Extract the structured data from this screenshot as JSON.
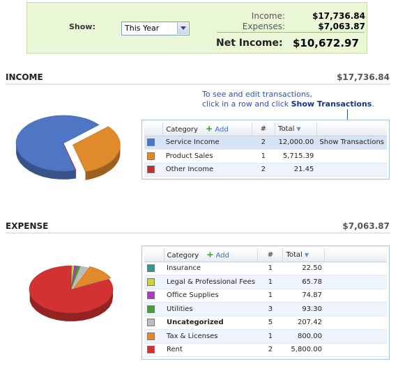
{
  "summary": {
    "show_label": "Show:",
    "period_selected": "This Year",
    "income_label": "Income:",
    "income_value": "$17,736.84",
    "expenses_label": "Expenses:",
    "expenses_value": "$7,063.87",
    "net_label": "Net Income:",
    "net_value": "$10,672.97"
  },
  "income": {
    "title": "INCOME",
    "total": "$17,736.84",
    "hint_line1": "To see and edit transactions,",
    "hint_line2": "click in a row and click",
    "hint_bold": "Show Transactions",
    "hint_end": ".",
    "table": {
      "col_category": "Category",
      "add_label": "Add",
      "col_count": "#",
      "col_total": "Total",
      "rows": [
        {
          "category": "Service Income",
          "count": "2",
          "total": "12,000.00",
          "action": "Show Transactions",
          "color": "#4f76c4"
        },
        {
          "category": "Product Sales",
          "count": "1",
          "total": "5,715.39",
          "action": "",
          "color": "#e08a2c"
        },
        {
          "category": "Other Income",
          "count": "2",
          "total": "21.45",
          "action": "",
          "color": "#c72c2c"
        }
      ]
    }
  },
  "expense": {
    "title": "EXPENSE",
    "total": "$7,063.87",
    "table": {
      "col_category": "Category",
      "add_label": "Add",
      "col_count": "#",
      "col_total": "Total",
      "rows": [
        {
          "category": "Insurance",
          "count": "1",
          "total": "22.50",
          "color": "#2f9b8e"
        },
        {
          "category": "Legal & Professional Fees",
          "count": "1",
          "total": "65.78",
          "color": "#c9d634"
        },
        {
          "category": "Office Supplies",
          "count": "1",
          "total": "74.87",
          "color": "#a53fb5"
        },
        {
          "category": "Utilities",
          "count": "3",
          "total": "93.30",
          "color": "#4b9b3a"
        },
        {
          "category": "Uncategorized",
          "count": "5",
          "total": "207.42",
          "color": "#bdbdbd"
        },
        {
          "category": "Tax & Licenses",
          "count": "1",
          "total": "800.00",
          "color": "#e08a2c"
        },
        {
          "category": "Rent",
          "count": "2",
          "total": "5,800.00",
          "color": "#d23232"
        }
      ]
    }
  },
  "icons": {
    "dropdown": "chevron-down-icon",
    "add": "plus-icon",
    "sort": "sort-desc-icon"
  }
}
